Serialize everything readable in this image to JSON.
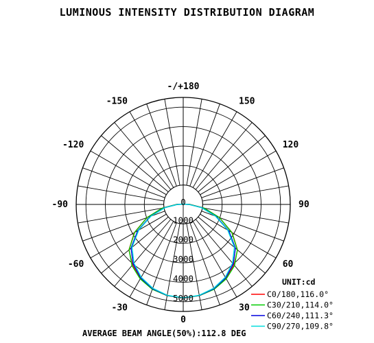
{
  "chart_data": {
    "type": "polar",
    "title": "LUMINOUS INTENSITY DISTRIBUTION DIAGRAM",
    "angle_labels": [
      {
        "deg": 180,
        "label": "-/+180"
      },
      {
        "deg": -150,
        "label": "-150"
      },
      {
        "deg": 150,
        "label": "150"
      },
      {
        "deg": -120,
        "label": "-120"
      },
      {
        "deg": 120,
        "label": "120"
      },
      {
        "deg": -90,
        "label": "-90"
      },
      {
        "deg": 90,
        "label": "90"
      },
      {
        "deg": -60,
        "label": "-60"
      },
      {
        "deg": 60,
        "label": "60"
      },
      {
        "deg": -30,
        "label": "-30"
      },
      {
        "deg": 30,
        "label": "30"
      },
      {
        "deg": 0,
        "label": "0"
      }
    ],
    "radial_ticks": [
      0,
      1000,
      2000,
      3000,
      4000,
      5000
    ],
    "radial_tick_labels": [
      "0",
      "1000",
      "2000",
      "3000",
      "4000",
      "5000"
    ],
    "rmax": 5500,
    "unit_label": "UNIT:cd",
    "series": [
      {
        "name": "C0/180,116.0°",
        "color": "#ff0000",
        "points": [
          [
            0,
            4800
          ],
          [
            10,
            4760
          ],
          [
            20,
            4620
          ],
          [
            30,
            4390
          ],
          [
            40,
            4060
          ],
          [
            50,
            3640
          ],
          [
            60,
            2900
          ],
          [
            70,
            1980
          ],
          [
            80,
            1100
          ],
          [
            90,
            350
          ],
          [
            100,
            60
          ],
          [
            180,
            30
          ]
        ]
      },
      {
        "name": "C30/210,114.0°",
        "color": "#00cc00",
        "points": [
          [
            0,
            4800
          ],
          [
            10,
            4760
          ],
          [
            20,
            4640
          ],
          [
            30,
            4420
          ],
          [
            40,
            4100
          ],
          [
            50,
            3630
          ],
          [
            60,
            2880
          ],
          [
            70,
            1980
          ],
          [
            80,
            1100
          ],
          [
            90,
            340
          ],
          [
            100,
            60
          ],
          [
            180,
            30
          ]
        ]
      },
      {
        "name": "C60/240,111.3°",
        "color": "#0000dd",
        "points": [
          [
            0,
            4800
          ],
          [
            10,
            4750
          ],
          [
            20,
            4610
          ],
          [
            30,
            4360
          ],
          [
            40,
            4000
          ],
          [
            50,
            3500
          ],
          [
            60,
            2700
          ],
          [
            70,
            1800
          ],
          [
            80,
            980
          ],
          [
            90,
            300
          ],
          [
            100,
            50
          ],
          [
            180,
            30
          ]
        ]
      },
      {
        "name": "C90/270,109.8°",
        "color": "#00dddd",
        "points": [
          [
            0,
            4800
          ],
          [
            10,
            4740
          ],
          [
            20,
            4580
          ],
          [
            30,
            4320
          ],
          [
            40,
            3940
          ],
          [
            50,
            3430
          ],
          [
            60,
            2640
          ],
          [
            70,
            1760
          ],
          [
            80,
            940
          ],
          [
            90,
            280
          ],
          [
            100,
            50
          ],
          [
            180,
            30
          ]
        ]
      }
    ],
    "annotation": "AVERAGE BEAM ANGLE(50%):112.8 DEG",
    "grid": true,
    "legend_position": "bottom-right"
  }
}
